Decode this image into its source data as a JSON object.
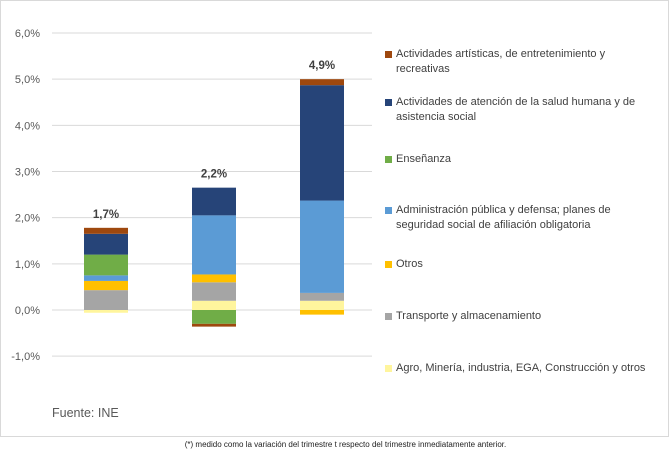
{
  "chart_data": {
    "type": "bar",
    "stacked": true,
    "title": "",
    "xlabel": "",
    "ylabel": "",
    "ylim": [
      -1.0,
      6.0
    ],
    "yticks": [
      "-1,0%",
      "0,0%",
      "1,0%",
      "2,0%",
      "3,0%",
      "4,0%",
      "5,0%",
      "6,0%"
    ],
    "ytick_values": [
      -1,
      0,
      1,
      2,
      3,
      4,
      5,
      6
    ],
    "grid": true,
    "legend_position": "right",
    "categories": [
      "",
      "",
      ""
    ],
    "totals": [
      1.7,
      2.2,
      4.9
    ],
    "total_labels": [
      "1,7%",
      "2,2%",
      "4,9%"
    ],
    "series": [
      {
        "name": "Agro, Minería, industria, EGA, Construcción y otros",
        "color": "#FFF59D",
        "values": [
          -0.06,
          0.2,
          0.2
        ]
      },
      {
        "name": "Transporte y almacenamiento",
        "color": "#A5A5A5",
        "values": [
          0.43,
          0.4,
          0.17
        ]
      },
      {
        "name": "Otros",
        "color": "#FFC000",
        "values": [
          0.2,
          0.17,
          -0.1
        ]
      },
      {
        "name": "Administración pública y defensa; planes de seguridad social de afiliación obligatoria",
        "color": "#5B9BD5",
        "values": [
          0.12,
          1.28,
          2.0
        ]
      },
      {
        "name": "Enseñanza",
        "color": "#70AD47",
        "values": [
          0.45,
          -0.3,
          0.0
        ]
      },
      {
        "name": "Actividades de atención de la salud humana y de asistencia social",
        "color": "#264478",
        "values": [
          0.45,
          0.6,
          2.5
        ]
      },
      {
        "name": "Actividades artísticas, de entretenimiento y recreativas",
        "color": "#9E480E",
        "values": [
          0.13,
          -0.06,
          0.13
        ]
      }
    ],
    "legend_order": [
      6,
      5,
      4,
      3,
      2,
      1,
      0
    ]
  },
  "legend": {
    "items": [
      {
        "label": "Actividades artísticas, de entretenimiento y recreativas",
        "color": "#9E480E"
      },
      {
        "label": "Actividades de atención de la salud humana y de asistencia social",
        "color": "#264478"
      },
      {
        "label": "Enseñanza",
        "color": "#70AD47"
      },
      {
        "label": "Administración pública y defensa; planes de seguridad social de afiliación obligatoria",
        "color": "#5B9BD5"
      },
      {
        "label": "Otros",
        "color": "#FFC000"
      },
      {
        "label": "Transporte y almacenamiento",
        "color": "#A5A5A5"
      },
      {
        "label": "Agro, Minería, industria, EGA, Construcción y otros",
        "color": "#FFF59D"
      }
    ]
  },
  "source": "Fuente: INE",
  "footnote": "(*) medido como la variación del trimestre t respecto del trimestre inmediatamente anterior."
}
